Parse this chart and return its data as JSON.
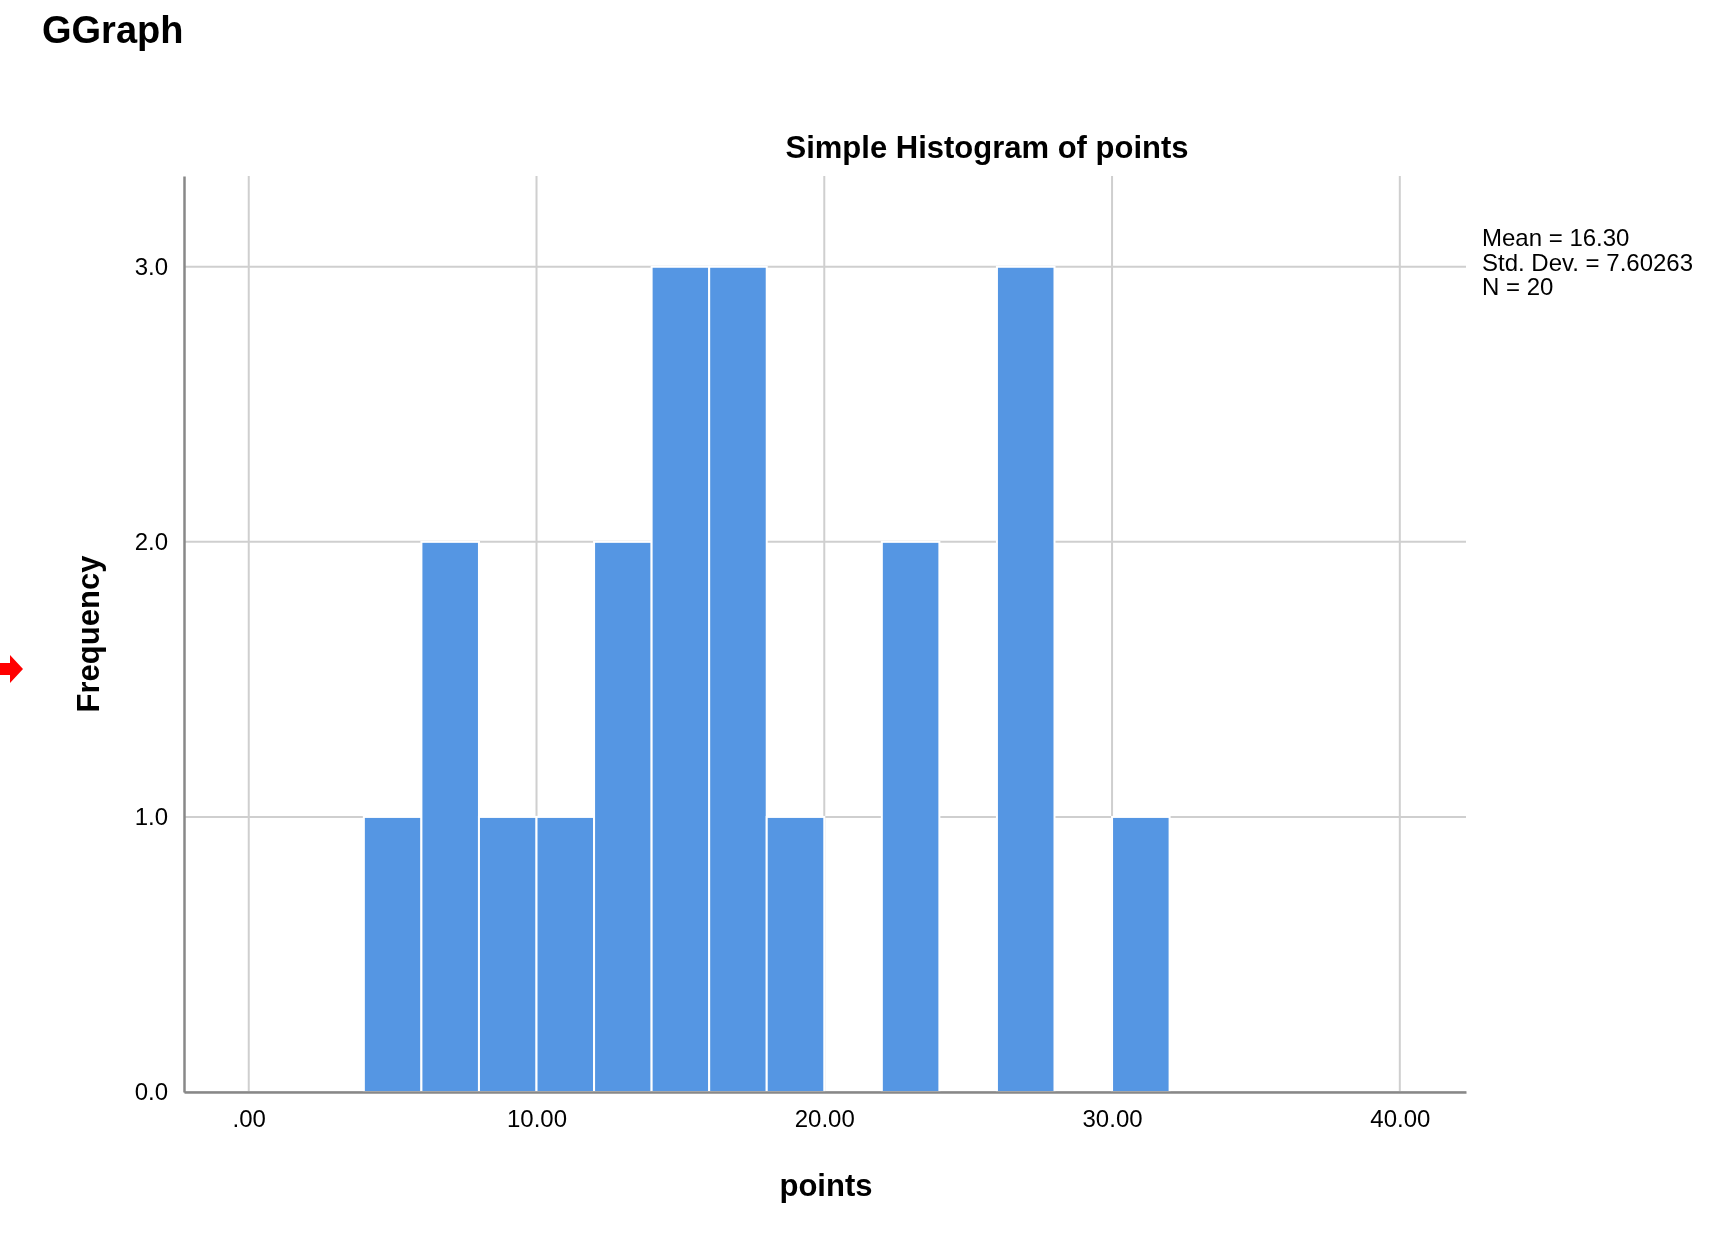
{
  "chart_data": {
    "type": "histogram",
    "title": "GGraph",
    "subtitle": "Simple Histogram of points",
    "xlabel": "points",
    "ylabel": "Frequency",
    "bins": [
      4,
      6,
      8,
      10,
      12,
      14,
      16,
      18,
      20,
      22,
      24,
      26,
      28,
      30,
      32
    ],
    "values": [
      1,
      2,
      1,
      1,
      2,
      3,
      3,
      1,
      0,
      2,
      0,
      3,
      0,
      1
    ],
    "color": "#5596e3",
    "xlim": [
      -2.25,
      42.3
    ],
    "ylim": [
      0,
      3.33
    ],
    "xticks": [
      {
        "value": 0,
        "label": ".00"
      },
      {
        "value": 10,
        "label": "10.00"
      },
      {
        "value": 20,
        "label": "20.00"
      },
      {
        "value": 30,
        "label": "30.00"
      },
      {
        "value": 40,
        "label": "40.00"
      }
    ],
    "yticks": [
      {
        "value": 0,
        "label": "0.0"
      },
      {
        "value": 1,
        "label": "1.0"
      },
      {
        "value": 2,
        "label": "2.0"
      },
      {
        "value": 3,
        "label": "3.0"
      }
    ],
    "grid": true,
    "annotations": [
      "Mean = 16.30",
      "Std. Dev. = 7.60263",
      "N = 20"
    ]
  }
}
